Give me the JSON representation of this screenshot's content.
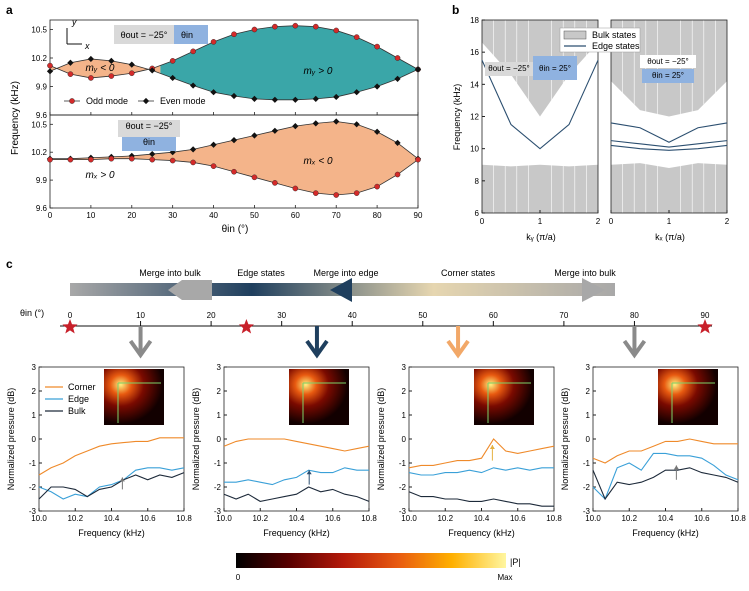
{
  "panel_labels": {
    "a": "a",
    "b": "b",
    "c": "c"
  },
  "colors": {
    "odd_marker": "#d42a2a",
    "even_marker": "#111111",
    "teal_fill": "#3aa6a8",
    "orange_fill": "#f4b48a",
    "bulk_grey": "#c8c8c8",
    "edge_line": "#2c4f70",
    "gradient": [
      "#a8a8a8",
      "#1f3f5e",
      "#e6d6b0",
      "#a8a8a8"
    ],
    "arrow_grey": "#8a8a8a",
    "arrow_navy": "#1f3f5e",
    "arrow_orange": "#f2a868",
    "star_red": "#c8202a",
    "corner": "#ef8a2a",
    "edge": "#3aa0d8",
    "bulk": "#1d2a3a",
    "colormap": [
      "#000000",
      "#5a0000",
      "#b51a0a",
      "#e85a10",
      "#ffb000",
      "#fff6a0"
    ]
  },
  "chart_data": [
    {
      "id": "a-top",
      "type": "line",
      "xlabel": "θin (°)",
      "ylabel": "Frequency (kHz)",
      "xlim": [
        0,
        90
      ],
      "ylim": [
        9.6,
        10.6
      ],
      "xticks": [
        0,
        10,
        20,
        30,
        40,
        50,
        60,
        70,
        80,
        90
      ],
      "yticks": [
        9.6,
        9.9,
        10.2,
        10.5
      ],
      "series": [
        {
          "name": "Odd mode",
          "marker": "circle",
          "x": [
            0,
            5,
            10,
            15,
            20,
            25,
            30,
            35,
            40,
            45,
            50,
            55,
            60,
            65,
            70,
            75,
            80,
            85,
            90
          ],
          "y": [
            10.12,
            10.03,
            9.99,
            10.01,
            10.04,
            10.09,
            10.17,
            10.27,
            10.37,
            10.45,
            10.5,
            10.53,
            10.54,
            10.53,
            10.49,
            10.42,
            10.32,
            10.2,
            10.08
          ]
        },
        {
          "name": "Even mode",
          "marker": "diamond",
          "x": [
            0,
            5,
            10,
            15,
            20,
            25,
            30,
            35,
            40,
            45,
            50,
            55,
            60,
            65,
            70,
            75,
            80,
            85,
            90
          ],
          "y": [
            10.06,
            10.15,
            10.19,
            10.17,
            10.13,
            10.07,
            9.99,
            9.91,
            9.84,
            9.8,
            9.77,
            9.76,
            9.76,
            9.77,
            9.79,
            9.84,
            9.9,
            9.98,
            10.08
          ]
        }
      ],
      "fill_regions": [
        {
          "x_from": 0,
          "x_to": 27,
          "color": "orange_fill",
          "label": "mᵧ < 0"
        },
        {
          "x_from": 27,
          "x_to": 90,
          "color": "teal_fill",
          "label": "mᵧ > 0"
        }
      ],
      "badge_left": "θout = −25°",
      "badge_right": "θin",
      "legend": [
        "Odd mode",
        "Even mode"
      ],
      "legend_position": "bottom-center",
      "axes_labels": {
        "y": "y",
        "x": "x"
      }
    },
    {
      "id": "a-bottom",
      "type": "line",
      "xlabel": "θin (°)",
      "ylabel": "Frequency (kHz)",
      "xlim": [
        0,
        90
      ],
      "ylim": [
        9.6,
        10.6
      ],
      "xticks": [
        0,
        10,
        20,
        30,
        40,
        50,
        60,
        70,
        80,
        90
      ],
      "yticks": [
        9.6,
        9.9,
        10.2,
        10.5
      ],
      "series": [
        {
          "name": "Even mode",
          "marker": "diamond",
          "x": [
            0,
            5,
            10,
            15,
            20,
            25,
            30,
            35,
            40,
            45,
            50,
            55,
            60,
            65,
            70,
            75,
            80,
            85,
            90
          ],
          "y": [
            10.13,
            10.13,
            10.14,
            10.15,
            10.16,
            10.18,
            10.2,
            10.23,
            10.28,
            10.33,
            10.38,
            10.43,
            10.48,
            10.51,
            10.53,
            10.5,
            10.42,
            10.3,
            10.13
          ]
        },
        {
          "name": "Odd mode",
          "marker": "circle",
          "x": [
            0,
            5,
            10,
            15,
            20,
            25,
            30,
            35,
            40,
            45,
            50,
            55,
            60,
            65,
            70,
            75,
            80,
            85,
            90
          ],
          "y": [
            10.12,
            10.12,
            10.12,
            10.13,
            10.13,
            10.12,
            10.11,
            10.09,
            10.05,
            9.99,
            9.93,
            9.87,
            9.81,
            9.76,
            9.74,
            9.76,
            9.83,
            9.96,
            10.12
          ]
        }
      ],
      "fill_regions": [
        {
          "x_from": 0,
          "x_to": 90,
          "color": "orange_fill",
          "label": "mₓ < 0"
        }
      ],
      "side_label": "mₓ > 0",
      "badge_top": "θout = −25°",
      "badge_bottom": "θin"
    },
    {
      "id": "b-left",
      "type": "line",
      "xlabel": "kᵧ (π/a)",
      "ylabel": "Frequency (kHz)",
      "xlim": [
        0,
        2
      ],
      "ylim": [
        6,
        18
      ],
      "xticks": [
        0,
        1,
        2
      ],
      "yticks": [
        6,
        8,
        10,
        12,
        14,
        16,
        18
      ],
      "series": [
        {
          "name": "Edge states",
          "x": [
            0,
            0.5,
            1,
            1.5,
            2
          ],
          "y": [
            15.5,
            11.5,
            10.0,
            11.5,
            15.5
          ]
        }
      ],
      "bulk_bands": [
        {
          "lower": [
            16.6,
            14.6,
            12.0,
            14.6,
            16.6
          ]
        },
        {
          "upper": [
            9.0,
            8.9,
            9.0,
            8.9,
            9.0
          ]
        }
      ],
      "badge_left": "θout = −25°",
      "badge_right": "θin = 25°",
      "legend": [
        "Bulk states",
        "Edge states"
      ],
      "legend_position": "top-right"
    },
    {
      "id": "b-right",
      "type": "line",
      "xlabel": "kₓ (π/a)",
      "xlim": [
        0,
        2
      ],
      "ylim": [
        6,
        18
      ],
      "xticks": [
        0,
        1,
        2
      ],
      "series": [
        {
          "name": "Edge states",
          "x": [
            0,
            0.5,
            1,
            1.5,
            2
          ],
          "y": [
            11.6,
            11.3,
            10.4,
            11.3,
            11.6
          ]
        }
      ],
      "badge_top": "θout = −25°",
      "badge_bottom": "θin = 25°"
    },
    {
      "id": "c-scale",
      "type": "line",
      "xlabel": "θin (°)",
      "xlim": [
        0,
        90
      ],
      "xticks": [
        0,
        10,
        20,
        30,
        40,
        50,
        60,
        70,
        80,
        90
      ],
      "stars_at": [
        0,
        25,
        90
      ],
      "arrows": [
        {
          "at": 10,
          "color": "arrow_grey"
        },
        {
          "at": 35,
          "color": "arrow_navy"
        },
        {
          "at": 55,
          "color": "arrow_orange"
        },
        {
          "at": 80,
          "color": "arrow_grey"
        }
      ],
      "band_labels": [
        "Merge into bulk",
        "Edge states",
        "Merge into edge",
        "Corner states",
        "Merge into bulk"
      ]
    },
    {
      "id": "c-spectra",
      "type": "line",
      "xlabel": "Frequency (kHz)",
      "ylabel": "Normalized pressure (dB)",
      "xlim": [
        10.0,
        10.8
      ],
      "ylim": [
        -3,
        3
      ],
      "xticks": [
        10.0,
        10.2,
        10.4,
        10.6,
        10.8
      ],
      "yticks": [
        -3,
        -2,
        -1,
        0,
        1,
        2,
        3
      ],
      "legend": [
        "Corner",
        "Edge",
        "Bulk"
      ],
      "panels": [
        {
          "theta": 10,
          "corner": [
            -1.5,
            -1.2,
            -1.0,
            -0.7,
            -0.5,
            -0.3,
            -0.2,
            -0.15,
            -0.1,
            -0.1,
            0.05,
            0.05,
            0.05
          ],
          "edge": [
            -2.0,
            -2.2,
            -2.5,
            -2.3,
            -2.4,
            -2.0,
            -1.9,
            -1.7,
            -1.3,
            -1.2,
            -1.2,
            -1.3,
            -1.2
          ],
          "bulk": [
            -2.5,
            -2.0,
            -2.0,
            -2.1,
            -2.4,
            -2.1,
            -2.0,
            -1.7,
            -1.5,
            -1.7,
            -1.5,
            -1.6,
            -1.4
          ]
        },
        {
          "theta": 35,
          "corner": [
            -0.3,
            -0.1,
            0.0,
            0.0,
            0.0,
            0.0,
            -0.1,
            -0.2,
            -0.3,
            -0.4,
            -0.5,
            -0.4,
            -0.3
          ],
          "edge": [
            -1.8,
            -1.8,
            -1.7,
            -1.8,
            -1.9,
            -1.7,
            -1.6,
            -1.3,
            -1.4,
            -1.4,
            -1.2,
            -1.3,
            -1.3
          ],
          "bulk": [
            -2.3,
            -2.5,
            -2.3,
            -2.6,
            -2.5,
            -2.4,
            -2.3,
            -2.0,
            -2.2,
            -2.1,
            -2.3,
            -2.4,
            -2.6
          ]
        },
        {
          "theta": 55,
          "corner": [
            -1.2,
            -1.1,
            -1.1,
            -1.0,
            -0.9,
            -0.9,
            -0.8,
            0.0,
            -0.5,
            -0.6,
            -0.5,
            -0.4,
            -0.3
          ],
          "edge": [
            -1.4,
            -1.5,
            -1.5,
            -1.4,
            -1.4,
            -1.3,
            -1.4,
            -1.2,
            -1.3,
            -1.2,
            -1.3,
            -1.2,
            -1.2
          ],
          "bulk": [
            -2.2,
            -2.4,
            -2.4,
            -2.5,
            -2.5,
            -2.6,
            -2.6,
            -2.5,
            -2.6,
            -2.7,
            -2.7,
            -2.8,
            -2.8
          ]
        },
        {
          "theta": 80,
          "corner": [
            -0.8,
            -1.0,
            -0.7,
            -0.5,
            -0.5,
            -0.3,
            -0.1,
            -0.1,
            0.0,
            -0.1,
            -0.2,
            -0.2,
            -0.2
          ],
          "edge": [
            -2.0,
            -2.5,
            -1.2,
            -1.0,
            -1.3,
            -0.6,
            -0.6,
            -0.7,
            -0.7,
            -0.8,
            -1.1,
            -1.5,
            -1.7
          ],
          "bulk": [
            -1.3,
            -2.5,
            -1.8,
            -1.9,
            -1.8,
            -1.6,
            -1.3,
            -1.3,
            -1.2,
            -1.4,
            -1.5,
            -1.6,
            -1.8
          ]
        }
      ]
    }
  ],
  "colorbar": {
    "label": "|P|",
    "min": "0",
    "max": "Max"
  }
}
